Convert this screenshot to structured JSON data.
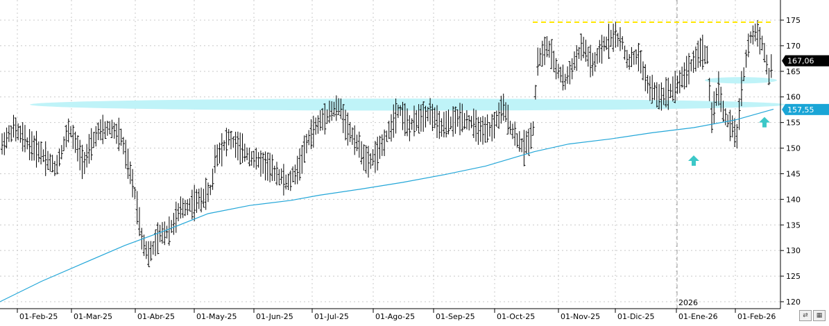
{
  "chart_data": {
    "type": "bar",
    "subtype": "ohlc",
    "colors": {
      "bars": "#000000",
      "moving_average": "#22a6d8",
      "support_zone": "#bff3f8",
      "resistance": "#ffe600",
      "arrows": "#3cc8c8",
      "last_price_bg": "#000000",
      "ma_price_bg": "#1aa5d6",
      "grid": "#c8c8c8"
    },
    "grid": true,
    "y_axis": {
      "position": "right",
      "ylim": [
        119,
        178
      ],
      "ticks": [
        120,
        125,
        130,
        135,
        140,
        145,
        150,
        155,
        160,
        165,
        170,
        175
      ]
    },
    "x_labels": [
      "01-Feb-25",
      "01-Mar-25",
      "01-Abr-25",
      "01-May-25",
      "01-Jun-25",
      "01-Jul-25",
      "01-Ago-25",
      "01-Sep-25",
      "01-Oct-25",
      "01-Nov-25",
      "01-Dic-25",
      "01-Ene-26",
      "01-Feb-26"
    ],
    "year_marker": "2026",
    "last_price_label": "167,06",
    "ma_price_label": "157,55",
    "resistance_level": 174.6,
    "support_zone": [
      157.6,
      159.4
    ],
    "support_zone_2": [
      162.9,
      163.6
    ],
    "arrows_at_price": [
      147.5,
      155
    ],
    "ohlc_anchors": [
      [
        0,
        150
      ],
      [
        20,
        154
      ],
      [
        40,
        151
      ],
      [
        60,
        149
      ],
      [
        80,
        146
      ],
      [
        100,
        154
      ],
      [
        120,
        147
      ],
      [
        140,
        153
      ],
      [
        160,
        154
      ],
      [
        175,
        152
      ],
      [
        195,
        141
      ],
      [
        205,
        132
      ],
      [
        215,
        129
      ],
      [
        230,
        133
      ],
      [
        245,
        134
      ],
      [
        260,
        138
      ],
      [
        275,
        139
      ],
      [
        290,
        140
      ],
      [
        305,
        142
      ],
      [
        310,
        148
      ],
      [
        330,
        152
      ],
      [
        345,
        150
      ],
      [
        365,
        148
      ],
      [
        380,
        147
      ],
      [
        400,
        145
      ],
      [
        415,
        143
      ],
      [
        430,
        146
      ],
      [
        445,
        152
      ],
      [
        460,
        155
      ],
      [
        475,
        157
      ],
      [
        490,
        158
      ],
      [
        500,
        154
      ],
      [
        515,
        151
      ],
      [
        530,
        147
      ],
      [
        545,
        149
      ],
      [
        560,
        153
      ],
      [
        575,
        158
      ],
      [
        590,
        154
      ],
      [
        605,
        156
      ],
      [
        620,
        157
      ],
      [
        635,
        154
      ],
      [
        650,
        155
      ],
      [
        665,
        156
      ],
      [
        680,
        155
      ],
      [
        695,
        153
      ],
      [
        710,
        154
      ],
      [
        725,
        158
      ],
      [
        740,
        153
      ],
      [
        755,
        150
      ],
      [
        768,
        153
      ],
      [
        775,
        167
      ],
      [
        790,
        170
      ],
      [
        800,
        166
      ],
      [
        815,
        163
      ],
      [
        825,
        166
      ],
      [
        840,
        170
      ],
      [
        855,
        166
      ],
      [
        870,
        170
      ],
      [
        885,
        172
      ],
      [
        895,
        171
      ],
      [
        905,
        167
      ],
      [
        920,
        168
      ],
      [
        935,
        162
      ],
      [
        950,
        160
      ],
      [
        965,
        161
      ],
      [
        980,
        163
      ],
      [
        995,
        166
      ],
      [
        1010,
        169
      ],
      [
        1020,
        168
      ],
      [
        1025,
        155
      ],
      [
        1035,
        162
      ],
      [
        1045,
        156
      ],
      [
        1055,
        154
      ],
      [
        1062,
        152
      ],
      [
        1070,
        163
      ],
      [
        1080,
        171
      ],
      [
        1090,
        173
      ],
      [
        1100,
        170
      ],
      [
        1108,
        164
      ],
      [
        1115,
        167
      ]
    ],
    "ma_anchors": [
      [
        0,
        120
      ],
      [
        60,
        124
      ],
      [
        120,
        127.5
      ],
      [
        180,
        131
      ],
      [
        240,
        134
      ],
      [
        300,
        137.2
      ],
      [
        360,
        138.8
      ],
      [
        420,
        139.8
      ],
      [
        460,
        140.8
      ],
      [
        520,
        142
      ],
      [
        580,
        143.3
      ],
      [
        640,
        144.8
      ],
      [
        700,
        146.5
      ],
      [
        770,
        149.3
      ],
      [
        820,
        150.8
      ],
      [
        880,
        151.8
      ],
      [
        940,
        153
      ],
      [
        1000,
        154
      ],
      [
        1060,
        155.5
      ],
      [
        1115,
        157.6
      ]
    ]
  },
  "toolbar": {
    "left_icon": "arrows-icon",
    "right_icon": "grid-icon"
  }
}
